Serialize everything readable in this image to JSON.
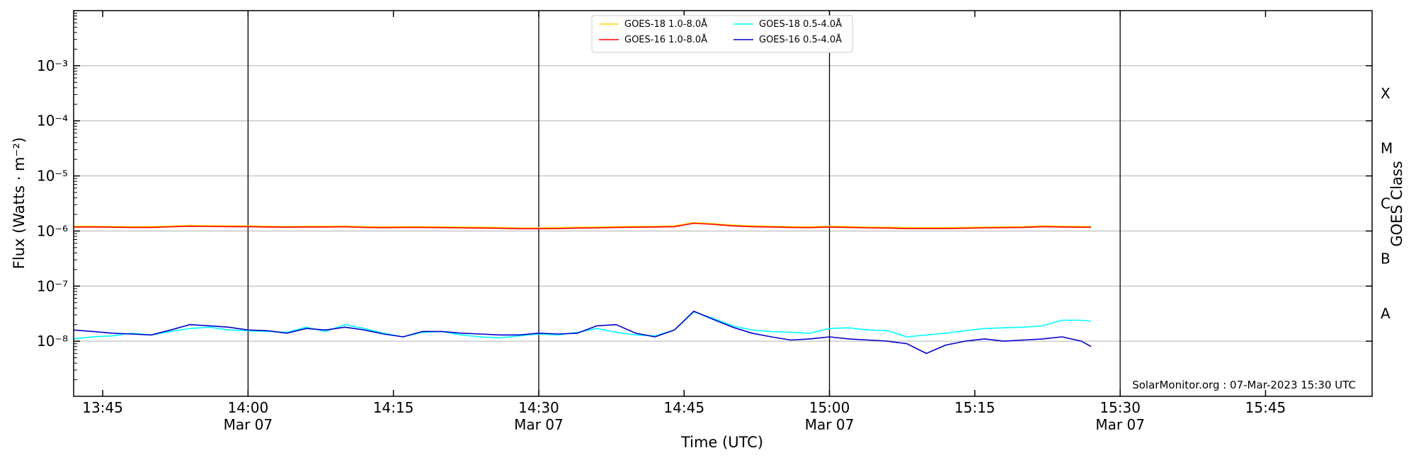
{
  "chart_data": {
    "type": "line",
    "xlabel": "Time (UTC)",
    "ylabel": "Flux (Watts · m⁻²)",
    "y2label": "GOES Class",
    "yscale": "log",
    "xlim": [
      "13:42",
      "15:56"
    ],
    "ylim": [
      1e-09,
      0.01
    ],
    "y_ticks": [
      {
        "value": 1e-08,
        "label": "10⁻⁸"
      },
      {
        "value": 1e-07,
        "label": "10⁻⁷"
      },
      {
        "value": 1e-06,
        "label": "10⁻⁶"
      },
      {
        "value": 1e-05,
        "label": "10⁻⁵"
      },
      {
        "value": 0.0001,
        "label": "10⁻⁴"
      },
      {
        "value": 0.001,
        "label": "10⁻³"
      }
    ],
    "x_ticks": [
      {
        "time": "13:45",
        "label": "13:45",
        "sub": ""
      },
      {
        "time": "14:00",
        "label": "14:00",
        "sub": "Mar 07"
      },
      {
        "time": "14:15",
        "label": "14:15",
        "sub": ""
      },
      {
        "time": "14:30",
        "label": "14:30",
        "sub": "Mar 07"
      },
      {
        "time": "14:45",
        "label": "14:45",
        "sub": ""
      },
      {
        "time": "15:00",
        "label": "15:00",
        "sub": "Mar 07"
      },
      {
        "time": "15:15",
        "label": "15:15",
        "sub": ""
      },
      {
        "time": "15:30",
        "label": "15:30",
        "sub": "Mar 07"
      },
      {
        "time": "15:45",
        "label": "15:45",
        "sub": ""
      }
    ],
    "vlines": [
      "14:00",
      "14:30",
      "15:00",
      "15:30"
    ],
    "class_labels": [
      {
        "label": "X",
        "value": 0.000316
      },
      {
        "label": "M",
        "value": 3.16e-05
      },
      {
        "label": "C",
        "value": 3.16e-06
      },
      {
        "label": "B",
        "value": 3.16e-07
      },
      {
        "label": "A",
        "value": 3.16e-08
      }
    ],
    "grid": "horizontal at decades",
    "legend_position": "top-center",
    "credit": "SolarMonitor.org : 07-Mar-2023 15:30 UTC",
    "x": [
      "13:42",
      "13:44",
      "13:46",
      "13:48",
      "13:50",
      "13:52",
      "13:54",
      "13:56",
      "13:58",
      "14:00",
      "14:02",
      "14:04",
      "14:06",
      "14:08",
      "14:10",
      "14:12",
      "14:14",
      "14:16",
      "14:18",
      "14:20",
      "14:22",
      "14:24",
      "14:26",
      "14:28",
      "14:30",
      "14:32",
      "14:34",
      "14:36",
      "14:38",
      "14:40",
      "14:42",
      "14:44",
      "14:46",
      "14:48",
      "14:50",
      "14:52",
      "14:54",
      "14:56",
      "14:58",
      "15:00",
      "15:02",
      "15:04",
      "15:06",
      "15:08",
      "15:10",
      "15:12",
      "15:14",
      "15:16",
      "15:18",
      "15:20",
      "15:22",
      "15:24",
      "15:26",
      "15:27"
    ],
    "series": [
      {
        "name": "GOES-18 1.0-8.0Å",
        "color": "#ffd700",
        "values": [
          1.22e-06,
          1.22e-06,
          1.21e-06,
          1.2e-06,
          1.2e-06,
          1.23e-06,
          1.26e-06,
          1.25e-06,
          1.24e-06,
          1.24e-06,
          1.22e-06,
          1.21e-06,
          1.22e-06,
          1.22e-06,
          1.23e-06,
          1.2e-06,
          1.19e-06,
          1.2e-06,
          1.2e-06,
          1.19e-06,
          1.18e-06,
          1.17e-06,
          1.16e-06,
          1.14e-06,
          1.14e-06,
          1.15e-06,
          1.17e-06,
          1.18e-06,
          1.2e-06,
          1.21e-06,
          1.22e-06,
          1.24e-06,
          1.42e-06,
          1.36e-06,
          1.28e-06,
          1.24e-06,
          1.22e-06,
          1.2e-06,
          1.19e-06,
          1.22e-06,
          1.2e-06,
          1.18e-06,
          1.17e-06,
          1.15e-06,
          1.15e-06,
          1.15e-06,
          1.16e-06,
          1.18e-06,
          1.19e-06,
          1.2e-06,
          1.24e-06,
          1.22e-06,
          1.21e-06,
          1.21e-06
        ]
      },
      {
        "name": "GOES-18 0.5-4.0Å",
        "color": "#00ffff",
        "values": [
          1.1e-08,
          1.2e-08,
          1.25e-08,
          1.4e-08,
          1.3e-08,
          1.5e-08,
          1.7e-08,
          1.8e-08,
          1.6e-08,
          1.55e-08,
          1.5e-08,
          1.45e-08,
          1.8e-08,
          1.5e-08,
          2e-08,
          1.7e-08,
          1.4e-08,
          1.2e-08,
          1.45e-08,
          1.5e-08,
          1.3e-08,
          1.2e-08,
          1.15e-08,
          1.25e-08,
          1.35e-08,
          1.3e-08,
          1.45e-08,
          1.7e-08,
          1.45e-08,
          1.3e-08,
          1.25e-08,
          1.6e-08,
          3.4e-08,
          2.6e-08,
          1.9e-08,
          1.6e-08,
          1.5e-08,
          1.45e-08,
          1.4e-08,
          1.7e-08,
          1.75e-08,
          1.6e-08,
          1.55e-08,
          1.2e-08,
          1.3e-08,
          1.4e-08,
          1.55e-08,
          1.7e-08,
          1.75e-08,
          1.8e-08,
          1.9e-08,
          2.4e-08,
          2.4e-08,
          2.3e-08
        ]
      },
      {
        "name": "GOES-16 1.0-8.0Å",
        "color": "#ff0000",
        "values": [
          1.18e-06,
          1.18e-06,
          1.17e-06,
          1.16e-06,
          1.16e-06,
          1.19e-06,
          1.22e-06,
          1.21e-06,
          1.2e-06,
          1.2e-06,
          1.18e-06,
          1.17e-06,
          1.18e-06,
          1.18e-06,
          1.19e-06,
          1.16e-06,
          1.15e-06,
          1.16e-06,
          1.16e-06,
          1.15e-06,
          1.14e-06,
          1.13e-06,
          1.12e-06,
          1.1e-06,
          1.1e-06,
          1.11e-06,
          1.13e-06,
          1.14e-06,
          1.16e-06,
          1.17e-06,
          1.18e-06,
          1.2e-06,
          1.38e-06,
          1.32e-06,
          1.24e-06,
          1.2e-06,
          1.18e-06,
          1.16e-06,
          1.15e-06,
          1.18e-06,
          1.16e-06,
          1.14e-06,
          1.13e-06,
          1.11e-06,
          1.11e-06,
          1.11e-06,
          1.12e-06,
          1.14e-06,
          1.15e-06,
          1.16e-06,
          1.2e-06,
          1.18e-06,
          1.17e-06,
          1.17e-06
        ]
      },
      {
        "name": "GOES-16 0.5-4.0Å",
        "color": "#0000cd",
        "values": [
          1.6e-08,
          1.5e-08,
          1.4e-08,
          1.35e-08,
          1.3e-08,
          1.6e-08,
          2e-08,
          1.9e-08,
          1.8e-08,
          1.6e-08,
          1.55e-08,
          1.4e-08,
          1.7e-08,
          1.6e-08,
          1.8e-08,
          1.6e-08,
          1.35e-08,
          1.2e-08,
          1.5e-08,
          1.5e-08,
          1.4e-08,
          1.35e-08,
          1.3e-08,
          1.3e-08,
          1.4e-08,
          1.35e-08,
          1.4e-08,
          1.9e-08,
          2e-08,
          1.4e-08,
          1.2e-08,
          1.6e-08,
          3.5e-08,
          2.5e-08,
          1.8e-08,
          1.4e-08,
          1.2e-08,
          1.05e-08,
          1.1e-08,
          1.2e-08,
          1.1e-08,
          1.05e-08,
          1e-08,
          9e-09,
          6e-09,
          8.5e-09,
          1e-08,
          1.1e-08,
          1e-08,
          1.05e-08,
          1.1e-08,
          1.2e-08,
          1e-08,
          8e-09
        ]
      }
    ]
  }
}
